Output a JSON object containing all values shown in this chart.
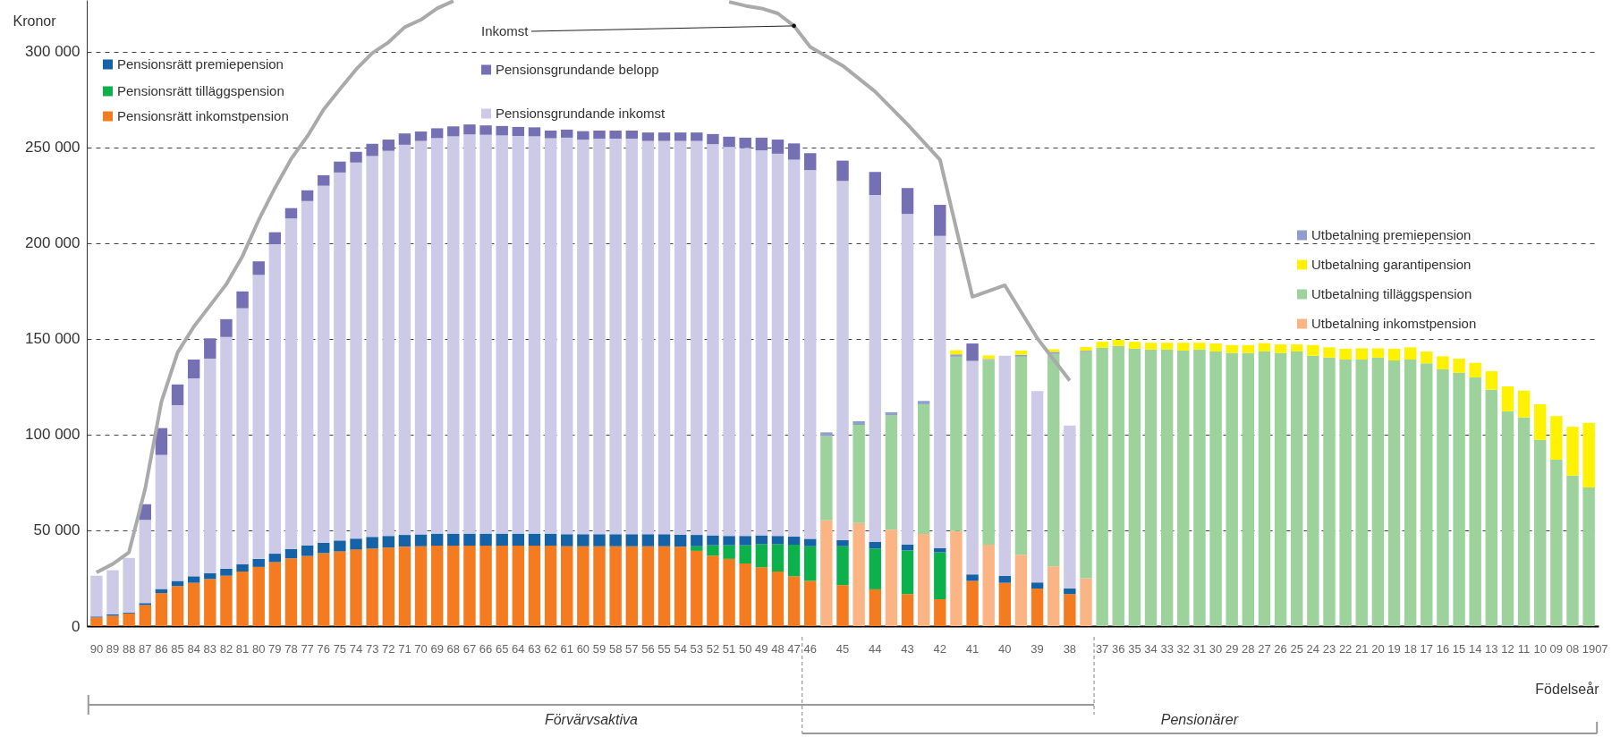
{
  "chart_data": {
    "type": "bar",
    "stacked": true,
    "xlabel": "Födelseår",
    "ylabel": "Kronor",
    "grid": "y",
    "legend": "top",
    "ylim": [
      0,
      327000
    ],
    "yticks": [
      0,
      {
        "value": 50000,
        "label": "50 000"
      },
      {
        "value": 100000,
        "label": "100 000"
      },
      {
        "value": 150000,
        "label": "150 000"
      },
      {
        "value": 200000,
        "label": "200 000"
      },
      {
        "value": 250000,
        "label": "250 000"
      },
      {
        "value": 300000,
        "label": "300 000"
      }
    ],
    "categories": [
      "90",
      "89",
      "88",
      "87",
      "86",
      "85",
      "84",
      "83",
      "82",
      "81",
      "80",
      "79",
      "78",
      "77",
      "76",
      "75",
      "74",
      "73",
      "72",
      "71",
      "70",
      "69",
      "68",
      "67",
      "66",
      "65",
      "64",
      "63",
      "62",
      "61",
      "60",
      "59",
      "58",
      "57",
      "56",
      "55",
      "54",
      "53",
      "52",
      "51",
      "50",
      "49",
      "48",
      "47",
      "46",
      null,
      "45",
      null,
      "44",
      null,
      "43",
      null,
      "42",
      null,
      "41",
      null,
      "40",
      null,
      "39",
      null,
      "38",
      null,
      "37",
      "36",
      "35",
      "34",
      "33",
      "32",
      "31",
      "30",
      "29",
      "28",
      "27",
      "26",
      "25",
      "24",
      "23",
      "22",
      "21",
      "20",
      "19",
      "18",
      "17",
      "16",
      "15",
      "14",
      "13",
      "12",
      "11",
      "10",
      "09",
      "08",
      "1907"
    ],
    "series": [
      {
        "name": "Pensionsrätt inkomstpension",
        "color": "#f47b20",
        "values": [
          4500,
          5400,
          6600,
          11000,
          17200,
          20900,
          22600,
          24600,
          26300,
          28500,
          30900,
          33400,
          35400,
          36600,
          38100,
          39000,
          40000,
          40500,
          41000,
          41500,
          41700,
          42000,
          42000,
          42000,
          42000,
          42000,
          42000,
          42000,
          42000,
          41700,
          41700,
          41700,
          41700,
          41700,
          41700,
          41700,
          41500,
          39300,
          36800,
          35100,
          32700,
          30700,
          28500,
          26000,
          23600,
          null,
          21400,
          null,
          19200,
          null,
          16700,
          null,
          14000,
          null,
          23600,
          null,
          22600,
          null,
          19600,
          null,
          16700,
          null,
          null,
          null,
          null,
          null,
          null,
          null,
          null,
          null,
          null,
          null,
          null,
          null,
          null,
          null,
          null,
          null,
          null,
          null,
          null,
          null,
          null,
          null,
          null,
          null,
          null,
          null,
          null,
          null,
          null,
          null,
          null
        ]
      },
      {
        "name": "Pensionsrätt tilläggspension",
        "color": "#0db14b",
        "values": [
          null,
          null,
          null,
          null,
          null,
          null,
          null,
          null,
          null,
          null,
          null,
          null,
          null,
          null,
          null,
          null,
          null,
          null,
          null,
          null,
          null,
          null,
          null,
          null,
          null,
          null,
          null,
          null,
          null,
          null,
          null,
          null,
          null,
          null,
          null,
          null,
          null,
          2400,
          5400,
          7100,
          9500,
          12000,
          14200,
          16500,
          18100,
          null,
          20300,
          null,
          21300,
          null,
          22800,
          null,
          24500,
          null,
          null,
          null,
          null,
          null,
          null,
          null,
          null,
          null,
          null,
          null,
          null,
          null,
          null,
          null,
          null,
          null,
          null,
          null,
          null,
          null,
          null,
          null,
          null,
          null,
          null,
          null,
          null,
          null,
          null,
          null,
          null,
          null,
          null,
          null,
          null,
          null,
          null,
          null,
          null
        ]
      },
      {
        "name": "Pensionsrätt premiepension",
        "color": "#1563a6",
        "values": [
          500,
          700,
          500,
          1000,
          2200,
          2700,
          3400,
          3100,
          3700,
          3900,
          4200,
          4400,
          4900,
          5600,
          5400,
          5700,
          5700,
          6100,
          6100,
          6100,
          6200,
          6300,
          6300,
          6300,
          6300,
          6300,
          6300,
          6300,
          6300,
          6300,
          6300,
          6300,
          6300,
          6300,
          6300,
          6300,
          6300,
          5900,
          5200,
          4900,
          4900,
          4700,
          4400,
          4200,
          3900,
          null,
          3200,
          null,
          3400,
          null,
          3000,
          null,
          2300,
          null,
          3400,
          null,
          3700,
          null,
          3200,
          null,
          2900,
          null,
          null,
          null,
          null,
          null,
          null,
          null,
          null,
          null,
          null,
          null,
          null,
          null,
          null,
          null,
          null,
          null,
          null,
          null,
          null,
          null,
          null,
          null,
          null,
          null,
          null,
          null,
          null,
          null,
          null,
          null,
          null
        ]
      },
      {
        "name": "Pensionsgrundande inkomst",
        "color": "#cccae6",
        "values": [
          21300,
          23100,
          28500,
          43500,
          70000,
          91800,
          103400,
          112000,
          121000,
          133600,
          148300,
          161600,
          172600,
          179800,
          186500,
          192200,
          196400,
          198900,
          201100,
          203800,
          205500,
          206600,
          207500,
          208500,
          208300,
          208000,
          207700,
          207500,
          206500,
          207100,
          206100,
          206600,
          206600,
          206600,
          205400,
          205400,
          205600,
          205800,
          204300,
          203100,
          202600,
          201100,
          199600,
          196900,
          192600,
          null,
          187600,
          null,
          181200,
          null,
          172800,
          null,
          163000,
          null,
          111500,
          null,
          114900,
          null,
          100000,
          null,
          85200,
          null,
          null,
          null,
          null,
          null,
          null,
          null,
          null,
          null,
          null,
          null,
          null,
          null,
          null,
          null,
          null,
          null,
          null,
          null,
          null,
          null,
          null,
          null,
          null,
          null,
          null,
          null,
          null,
          null,
          null,
          null,
          null
        ]
      },
      {
        "name": "Pensionsgrundande belopp",
        "color": "#7470b3",
        "values": [
          null,
          null,
          null,
          8100,
          14000,
          10800,
          9800,
          10600,
          9300,
          8800,
          7100,
          6300,
          5400,
          5600,
          5500,
          5700,
          5600,
          6400,
          5900,
          5900,
          4900,
          5100,
          5200,
          5200,
          4900,
          4900,
          4700,
          4700,
          4000,
          4200,
          4400,
          4200,
          4200,
          4200,
          4400,
          4400,
          4400,
          4400,
          5300,
          5400,
          5400,
          6600,
          7400,
          8500,
          8800,
          null,
          10600,
          null,
          12100,
          null,
          13500,
          null,
          16200,
          null,
          9100,
          null,
          null,
          null,
          null,
          null,
          null,
          null,
          null,
          null,
          null,
          null,
          null,
          null,
          null,
          null,
          null,
          null,
          null,
          null,
          null,
          null,
          null,
          null,
          null,
          null,
          null,
          null,
          null,
          null,
          null,
          null,
          null,
          null,
          null,
          null,
          null,
          null,
          null
        ]
      },
      {
        "name": "Utbetalning inkomstpension",
        "color": "#fbb584",
        "values": [
          null,
          null,
          null,
          null,
          null,
          null,
          null,
          null,
          null,
          null,
          null,
          null,
          null,
          null,
          null,
          null,
          null,
          null,
          null,
          null,
          null,
          null,
          null,
          null,
          null,
          null,
          null,
          null,
          null,
          null,
          null,
          null,
          null,
          null,
          null,
          null,
          null,
          null,
          null,
          null,
          null,
          null,
          null,
          null,
          null,
          55200,
          null,
          53800,
          null,
          50300,
          null,
          48100,
          null,
          49600,
          null,
          42500,
          null,
          37300,
          null,
          31200,
          null,
          25000,
          null,
          null,
          null,
          null,
          null,
          null,
          null,
          null,
          null,
          null,
          null,
          null,
          null,
          null,
          null,
          null,
          null,
          null,
          null,
          null,
          null,
          null,
          null,
          null,
          null,
          null,
          null,
          null,
          null,
          null,
          null
        ]
      },
      {
        "name": "Utbetalning tilläggspension",
        "color": "#9dd29c",
        "values": [
          null,
          null,
          null,
          null,
          null,
          null,
          null,
          null,
          null,
          null,
          null,
          null,
          null,
          null,
          null,
          null,
          null,
          null,
          null,
          null,
          null,
          null,
          null,
          null,
          null,
          null,
          null,
          null,
          null,
          null,
          null,
          null,
          null,
          null,
          null,
          null,
          null,
          null,
          null,
          null,
          null,
          null,
          null,
          null,
          null,
          44000,
          null,
          51300,
          null,
          59700,
          null,
          67800,
          null,
          91100,
          null,
          96500,
          null,
          103400,
          null,
          111000,
          null,
          118100,
          145300,
          146300,
          144900,
          144400,
          144400,
          143900,
          144400,
          143400,
          142600,
          142600,
          143400,
          142600,
          143400,
          141200,
          140200,
          139200,
          139200,
          140200,
          138700,
          139200,
          137200,
          134100,
          132300,
          129900,
          123500,
          112200,
          109000,
          97200,
          86900,
          78600,
          72400
        ]
      },
      {
        "name": "Utbetalning premiepension",
        "color": "#8e9fcc",
        "values": [
          null,
          null,
          null,
          null,
          null,
          null,
          null,
          null,
          null,
          null,
          null,
          null,
          null,
          null,
          null,
          null,
          null,
          null,
          null,
          null,
          null,
          null,
          null,
          null,
          null,
          null,
          null,
          null,
          null,
          null,
          null,
          null,
          null,
          null,
          null,
          null,
          null,
          null,
          null,
          null,
          null,
          null,
          null,
          null,
          null,
          2000,
          null,
          1900,
          null,
          1700,
          null,
          1700,
          null,
          1200,
          null,
          500,
          null,
          1000,
          null,
          1000,
          null,
          700,
          null,
          null,
          null,
          null,
          null,
          null,
          null,
          null,
          null,
          null,
          null,
          null,
          null,
          null,
          null,
          null,
          null,
          null,
          null,
          null,
          null,
          null,
          null,
          null,
          null,
          null,
          null,
          null,
          null,
          null,
          null
        ]
      },
      {
        "name": "Utbetalning garantipension",
        "color": "#fff200",
        "values": [
          null,
          null,
          null,
          null,
          null,
          null,
          null,
          null,
          null,
          null,
          null,
          null,
          null,
          null,
          null,
          null,
          null,
          null,
          null,
          null,
          null,
          null,
          null,
          null,
          null,
          null,
          null,
          null,
          null,
          null,
          null,
          null,
          null,
          null,
          null,
          null,
          null,
          null,
          null,
          null,
          null,
          null,
          null,
          null,
          null,
          null,
          null,
          null,
          null,
          null,
          null,
          null,
          null,
          2200,
          null,
          1900,
          null,
          2200,
          null,
          1400,
          null,
          2000,
          3200,
          3200,
          3600,
          3600,
          3600,
          4100,
          3600,
          4200,
          4200,
          4200,
          4400,
          4500,
          3700,
          5600,
          5400,
          5700,
          5900,
          4900,
          6200,
          6400,
          6200,
          6800,
          7400,
          7600,
          9600,
          13000,
          14000,
          18700,
          22800,
          25500,
          33700
        ]
      },
      {
        "name": "Inkomst",
        "type": "line",
        "color": "#aaaaaa",
        "values": [
          28000,
          32400,
          38500,
          71700,
          117100,
          142900,
          156400,
          167400,
          178500,
          193200,
          212100,
          228800,
          244000,
          255800,
          269800,
          280400,
          290700,
          299300,
          304900,
          312800,
          316700,
          322600,
          326500,
          null,
          null,
          null,
          null,
          null,
          null,
          null,
          null,
          null,
          null,
          null,
          null,
          null,
          null,
          null,
          null,
          326000,
          324000,
          322600,
          320000,
          313500,
          302500,
          null,
          292700,
          null,
          279200,
          null,
          262000,
          null,
          243600,
          null,
          172000,
          null,
          178000,
          null,
          150300,
          null,
          128200,
          null,
          null,
          null,
          null,
          null,
          null,
          null,
          null,
          null,
          null,
          null,
          null,
          null,
          null,
          null,
          null,
          null,
          null,
          null,
          null,
          null,
          null,
          null,
          null,
          null,
          null,
          null,
          null,
          null,
          null,
          null,
          null
        ]
      }
    ],
    "annotations": [
      "Förvärvsaktiva",
      "Pensionärer"
    ]
  }
}
